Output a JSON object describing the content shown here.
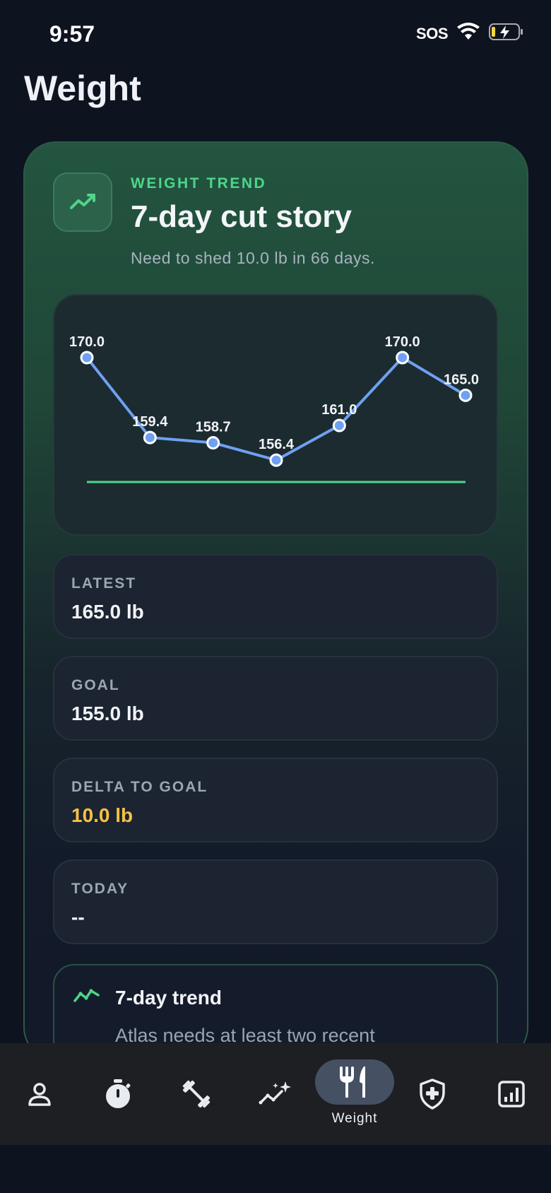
{
  "status_bar": {
    "time": "9:57",
    "sos": "SOS",
    "icons": [
      "wifi-icon",
      "battery-charging-icon"
    ]
  },
  "page": {
    "title": "Weight"
  },
  "trend_card": {
    "eyebrow": "WEIGHT TREND",
    "title": "7-day cut story",
    "subtitle": "Need to shed 10.0 lb in 66 days.",
    "icon": "trend-up-icon",
    "accent": "#4fd58a"
  },
  "chart_data": {
    "type": "line",
    "x": [
      1,
      2,
      3,
      4,
      5,
      6,
      7
    ],
    "series": [
      {
        "values": [
          170.0,
          159.4,
          158.7,
          156.4,
          161.0,
          170.0,
          165.0
        ],
        "color": "#6fa0f2"
      }
    ],
    "data_labels": [
      "170.0",
      "159.4",
      "158.7",
      "156.4",
      "161.0",
      "170.0",
      "165.0"
    ],
    "goal_line": 155.0,
    "goal_color": "#4fd58a",
    "ylim": [
      155.0,
      170.0
    ],
    "grid": false,
    "legend": "none"
  },
  "stats": {
    "latest": {
      "label": "LATEST",
      "value": "165.0 lb"
    },
    "goal": {
      "label": "GOAL",
      "value": "155.0 lb"
    },
    "delta": {
      "label": "DELTA TO GOAL",
      "value": "10.0 lb",
      "color": "#f7c044"
    },
    "today": {
      "label": "TODAY",
      "value": "--"
    }
  },
  "seven_day_trend": {
    "title": "7-day trend",
    "body": "Atlas needs at least two recent",
    "icon": "trend-line-icon"
  },
  "tabbar": {
    "tabs": [
      {
        "name": "profile",
        "icon": "person-icon"
      },
      {
        "name": "timer",
        "icon": "stopwatch-icon"
      },
      {
        "name": "workout",
        "icon": "dumbbell-icon"
      },
      {
        "name": "insights",
        "icon": "sparkle-chart-icon"
      },
      {
        "name": "weight",
        "icon": "fork-knife-icon",
        "label": "Weight",
        "active": true
      },
      {
        "name": "health",
        "icon": "shield-plus-icon"
      },
      {
        "name": "stats",
        "icon": "bar-chart-icon"
      }
    ],
    "active_label": "Weight"
  }
}
